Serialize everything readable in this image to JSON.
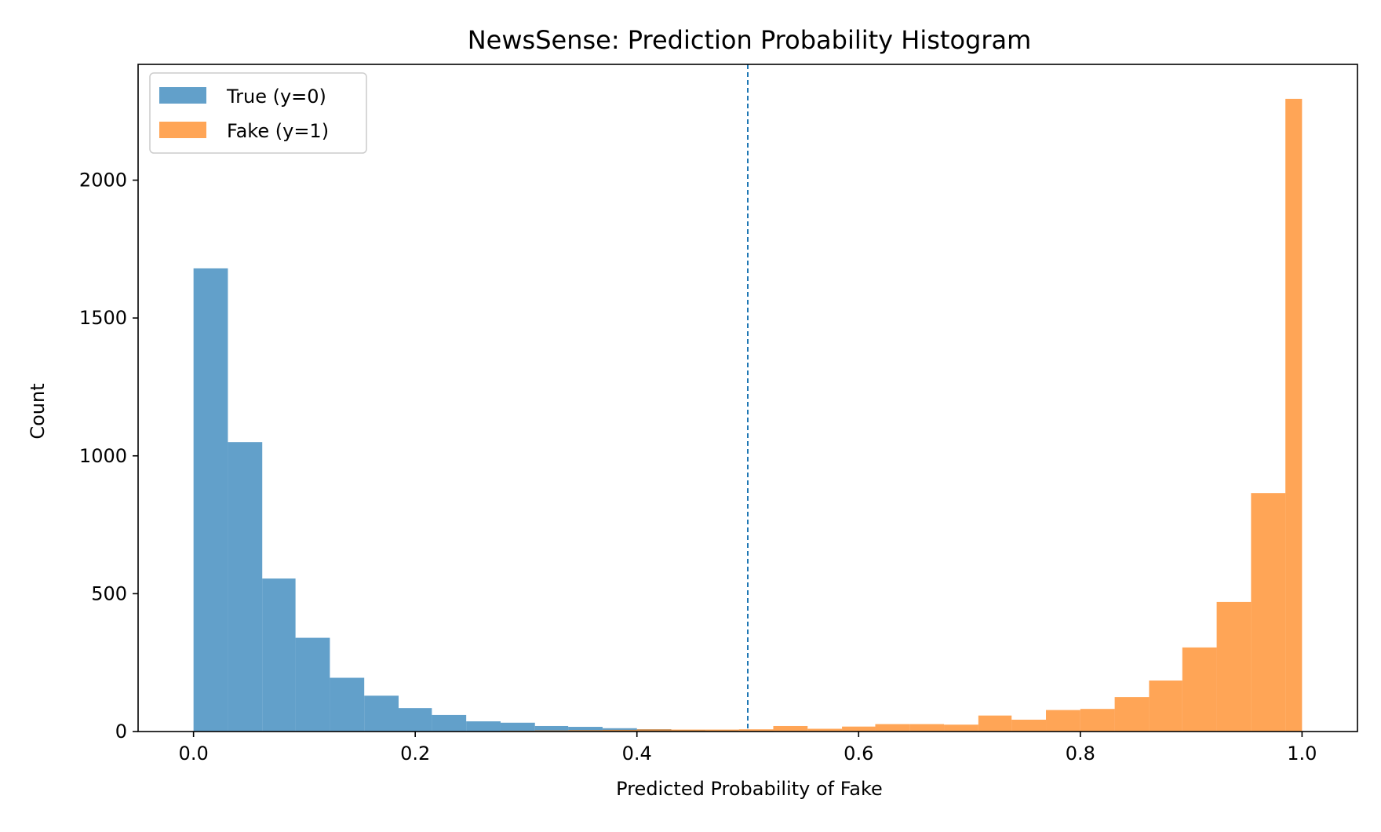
{
  "chart_data": {
    "type": "bar",
    "title": "NewsSense: Prediction Probability Histogram",
    "xlabel": "Predicted Probability of Fake",
    "ylabel": "Count",
    "xlim": [
      -0.05,
      1.05
    ],
    "ylim": [
      0,
      2420
    ],
    "xticks": [
      "0.0",
      "0.2",
      "0.4",
      "0.6",
      "0.8",
      "1.0"
    ],
    "xtick_values": [
      0.0,
      0.2,
      0.4,
      0.6,
      0.8,
      1.0
    ],
    "yticks": [
      "0",
      "500",
      "1000",
      "1500",
      "2000"
    ],
    "ytick_values": [
      0,
      500,
      1000,
      1500,
      2000
    ],
    "bin_edges_start": 0.0,
    "bin_width": 0.030769,
    "grid": false,
    "legend_position": "top-left",
    "threshold": {
      "x": 0.5,
      "style": "dashed",
      "color": "#1f77b4"
    },
    "series": [
      {
        "name": "True (y=0)",
        "color": "#1f77b4",
        "opacity": 0.7,
        "bins": [
          {
            "start": 0.0,
            "end": 0.031,
            "count": 1680
          },
          {
            "start": 0.031,
            "end": 0.062,
            "count": 1050
          },
          {
            "start": 0.062,
            "end": 0.092,
            "count": 555
          },
          {
            "start": 0.092,
            "end": 0.123,
            "count": 340
          },
          {
            "start": 0.123,
            "end": 0.154,
            "count": 195
          },
          {
            "start": 0.154,
            "end": 0.185,
            "count": 130
          },
          {
            "start": 0.185,
            "end": 0.215,
            "count": 85
          },
          {
            "start": 0.215,
            "end": 0.246,
            "count": 60
          },
          {
            "start": 0.246,
            "end": 0.277,
            "count": 37
          },
          {
            "start": 0.277,
            "end": 0.308,
            "count": 32
          },
          {
            "start": 0.308,
            "end": 0.338,
            "count": 20
          },
          {
            "start": 0.338,
            "end": 0.369,
            "count": 17
          },
          {
            "start": 0.369,
            "end": 0.4,
            "count": 12
          },
          {
            "start": 0.4,
            "end": 0.431,
            "count": 8
          },
          {
            "start": 0.431,
            "end": 0.462,
            "count": 5
          },
          {
            "start": 0.462,
            "end": 0.492,
            "count": 4
          },
          {
            "start": 0.492,
            "end": 0.523,
            "count": 3
          }
        ]
      },
      {
        "name": "Fake (y=1)",
        "color": "#ff7f0e",
        "opacity": 0.7,
        "bins": [
          {
            "start": 0.277,
            "end": 0.308,
            "count": 3
          },
          {
            "start": 0.308,
            "end": 0.338,
            "count": 4
          },
          {
            "start": 0.338,
            "end": 0.369,
            "count": 5
          },
          {
            "start": 0.369,
            "end": 0.4,
            "count": 6
          },
          {
            "start": 0.4,
            "end": 0.431,
            "count": 8
          },
          {
            "start": 0.431,
            "end": 0.462,
            "count": 7
          },
          {
            "start": 0.462,
            "end": 0.492,
            "count": 7
          },
          {
            "start": 0.492,
            "end": 0.523,
            "count": 8
          },
          {
            "start": 0.523,
            "end": 0.554,
            "count": 20
          },
          {
            "start": 0.554,
            "end": 0.585,
            "count": 10
          },
          {
            "start": 0.585,
            "end": 0.615,
            "count": 18
          },
          {
            "start": 0.615,
            "end": 0.646,
            "count": 27
          },
          {
            "start": 0.646,
            "end": 0.677,
            "count": 27
          },
          {
            "start": 0.677,
            "end": 0.708,
            "count": 25
          },
          {
            "start": 0.708,
            "end": 0.738,
            "count": 58
          },
          {
            "start": 0.738,
            "end": 0.769,
            "count": 43
          },
          {
            "start": 0.769,
            "end": 0.8,
            "count": 78
          },
          {
            "start": 0.8,
            "end": 0.831,
            "count": 82
          },
          {
            "start": 0.831,
            "end": 0.862,
            "count": 125
          },
          {
            "start": 0.862,
            "end": 0.892,
            "count": 185
          },
          {
            "start": 0.892,
            "end": 0.923,
            "count": 305
          },
          {
            "start": 0.923,
            "end": 0.954,
            "count": 470
          },
          {
            "start": 0.954,
            "end": 0.985,
            "count": 865
          },
          {
            "start": 0.985,
            "end": 1.0,
            "count": 2295
          }
        ]
      }
    ]
  }
}
